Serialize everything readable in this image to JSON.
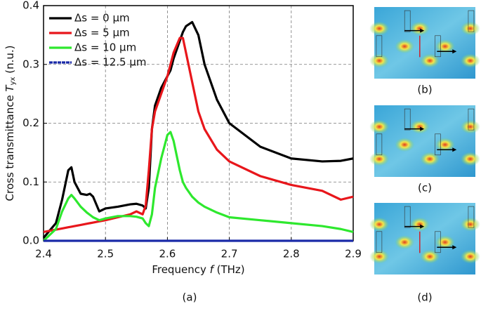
{
  "chart_data": {
    "type": "line",
    "y_label": {
      "main": "Cross transmittance ",
      "symbol": "T",
      "sub": "yx",
      "unit": " (n.u.)"
    },
    "x_label": {
      "main": "Frequency ",
      "symbol": "f",
      "unit": " (THz)"
    },
    "x": [
      2.4,
      2.42,
      2.43,
      2.44,
      2.445,
      2.45,
      2.46,
      2.47,
      2.475,
      2.48,
      2.49,
      2.5,
      2.52,
      2.54,
      2.55,
      2.56,
      2.565,
      2.57,
      2.575,
      2.58,
      2.59,
      2.6,
      2.605,
      2.61,
      2.62,
      2.625,
      2.63,
      2.64,
      2.65,
      2.66,
      2.68,
      2.7,
      2.75,
      2.8,
      2.85,
      2.88,
      2.9
    ],
    "series": [
      {
        "name": "Δs = 0 μm",
        "color": "#000000",
        "values": [
          0.005,
          0.03,
          0.07,
          0.12,
          0.125,
          0.1,
          0.08,
          0.078,
          0.08,
          0.075,
          0.05,
          0.055,
          0.058,
          0.062,
          0.063,
          0.06,
          0.055,
          0.09,
          0.19,
          0.23,
          0.26,
          0.28,
          0.29,
          0.31,
          0.34,
          0.355,
          0.365,
          0.372,
          0.35,
          0.3,
          0.24,
          0.2,
          0.16,
          0.14,
          0.135,
          0.136,
          0.14
        ]
      },
      {
        "name": "Δs = 5 μm",
        "color": "#e8161b",
        "values": [
          0.015,
          0.019,
          0.021,
          0.023,
          0.024,
          0.025,
          0.027,
          0.029,
          0.03,
          0.031,
          0.033,
          0.035,
          0.04,
          0.045,
          0.05,
          0.045,
          0.06,
          0.12,
          0.19,
          0.22,
          0.25,
          0.28,
          0.3,
          0.32,
          0.345,
          0.345,
          0.32,
          0.27,
          0.22,
          0.19,
          0.155,
          0.135,
          0.11,
          0.095,
          0.085,
          0.07,
          0.075
        ]
      },
      {
        "name": "Δs = 10 μm",
        "color": "#2ee82e",
        "values": [
          0,
          0.02,
          0.05,
          0.072,
          0.078,
          0.072,
          0.058,
          0.048,
          0.044,
          0.04,
          0.035,
          0.038,
          0.042,
          0.042,
          0.041,
          0.038,
          0.03,
          0.025,
          0.045,
          0.09,
          0.14,
          0.18,
          0.185,
          0.17,
          0.12,
          0.1,
          0.09,
          0.075,
          0.065,
          0.058,
          0.048,
          0.04,
          0.035,
          0.03,
          0.025,
          0.02,
          0.015
        ]
      },
      {
        "name": "Δs = 12.5 μm",
        "color": "#1a2aa8",
        "values": [
          0,
          0,
          0,
          0,
          0,
          0,
          0,
          0,
          0,
          0,
          0,
          0,
          0,
          0,
          0,
          0,
          0,
          0,
          0,
          0,
          0,
          0,
          0,
          0,
          0,
          0,
          0,
          0,
          0,
          0,
          0,
          0,
          0,
          0,
          0,
          0,
          0
        ]
      }
    ],
    "xlim": [
      2.4,
      2.9
    ],
    "ylim": [
      0,
      0.4
    ],
    "xticks": [
      2.4,
      2.5,
      2.6,
      2.7,
      2.8,
      2.9
    ],
    "yticks": [
      {
        "value": 0,
        "label": "0.0"
      },
      0.1,
      0.2,
      0.3,
      0.4
    ],
    "grid": true,
    "legend": "upper-left",
    "caption": "(a)",
    "panels": [
      "(b)",
      "(c)",
      "(d)"
    ]
  }
}
